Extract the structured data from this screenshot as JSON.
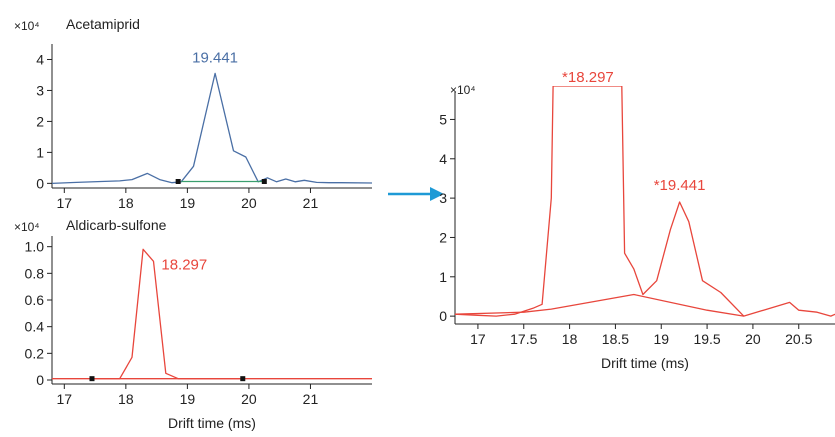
{
  "colors": {
    "blue": "#4a6fa5",
    "red": "#e8463c",
    "green": "#3a9e6e",
    "axis": "#222222",
    "arrow": "#1e9ad6"
  },
  "arrow_icon": "right-arrow-icon",
  "chart_data": [
    {
      "type": "line",
      "label": "Acetamiprid",
      "exponent_label": "×10⁴",
      "xlabel": "",
      "xlim": [
        16.8,
        22.0
      ],
      "ylim": [
        -0.15,
        4.5
      ],
      "x_ticks": [
        17,
        18,
        19,
        20,
        21
      ],
      "y_ticks": [
        0,
        1,
        2,
        3,
        4
      ],
      "series": [
        {
          "color": "blue",
          "x": [
            16.8,
            17.2,
            17.6,
            17.9,
            18.1,
            18.35,
            18.55,
            18.75,
            18.9,
            19.1,
            19.45,
            19.75,
            19.95,
            20.15,
            20.3,
            20.45,
            20.6,
            20.75,
            20.9,
            21.1,
            21.3,
            21.5,
            22.0
          ],
          "y": [
            0,
            0.03,
            0.06,
            0.08,
            0.12,
            0.32,
            0.12,
            0.02,
            0.05,
            0.55,
            3.55,
            1.05,
            0.85,
            0.05,
            0.18,
            0.05,
            0.14,
            0.05,
            0.1,
            0.03,
            0.02,
            0.02,
            0.01
          ]
        },
        {
          "color": "green",
          "x": [
            18.9,
            20.25
          ],
          "y": [
            0.06,
            0.06
          ]
        }
      ],
      "markers": [
        {
          "x": 18.85,
          "y": 0.06
        },
        {
          "x": 20.25,
          "y": 0.06
        }
      ],
      "annotations": [
        {
          "text": "19.441",
          "x": 19.45,
          "y": 3.9,
          "color": "blue"
        }
      ]
    },
    {
      "type": "line",
      "label": "Aldicarb-sulfone",
      "exponent_label": "×10⁴",
      "xlabel": "Drift time (ms)",
      "xlim": [
        16.8,
        22.0
      ],
      "ylim": [
        -0.03,
        1.08
      ],
      "x_ticks": [
        17,
        18,
        19,
        20,
        21
      ],
      "y_ticks": [
        0,
        0.2,
        0.4,
        0.6,
        0.8,
        1.0
      ],
      "y_tick_labels": [
        "0",
        "0.2",
        "0.4",
        "0.6",
        "0.8",
        "1.0"
      ],
      "series": [
        {
          "color": "red",
          "x": [
            16.8,
            17.5,
            17.9,
            18.1,
            18.28,
            18.45,
            18.65,
            18.85,
            19.2,
            20.0,
            21.0,
            22.0
          ],
          "y": [
            0.01,
            0.01,
            0.01,
            0.17,
            0.98,
            0.89,
            0.05,
            0.01,
            0.01,
            0.01,
            0.01,
            0.01
          ]
        },
        {
          "color": "red",
          "x": [
            17.4,
            19.9
          ],
          "y": [
            0.01,
            0.01
          ]
        }
      ],
      "markers": [
        {
          "x": 17.45,
          "y": 0.01
        },
        {
          "x": 19.9,
          "y": 0.01
        }
      ],
      "annotations": [
        {
          "text": "18.297",
          "x": 18.95,
          "y": 0.83,
          "color": "red"
        }
      ]
    },
    {
      "type": "line",
      "label": "",
      "exponent_label": "×10⁴",
      "xlabel": "Drift time (ms)",
      "xlim": [
        16.75,
        20.95
      ],
      "ylim": [
        -0.2,
        5.85
      ],
      "x_ticks": [
        17,
        17.5,
        18,
        18.5,
        19,
        19.5,
        20,
        20.5
      ],
      "y_ticks": [
        0,
        1,
        2,
        3,
        4,
        5
      ],
      "series": [
        {
          "color": "red",
          "x": [
            16.75,
            17.0,
            17.2,
            17.4,
            17.6,
            17.7,
            17.8,
            17.82,
            17.9,
            18.5,
            18.57,
            18.6,
            18.7,
            18.8,
            18.95,
            19.1,
            19.2,
            19.3,
            19.45,
            19.65,
            19.9,
            20.4,
            20.5,
            20.7,
            20.85,
            20.95
          ],
          "y": [
            0.05,
            0.02,
            0.0,
            0.05,
            0.2,
            0.3,
            3.0,
            5.85,
            5.85,
            5.85,
            5.85,
            1.6,
            1.2,
            0.55,
            0.9,
            2.2,
            2.9,
            2.4,
            0.9,
            0.6,
            0.0,
            0.35,
            0.15,
            0.1,
            0.0,
            0.1
          ]
        },
        {
          "color": "red",
          "x": [
            16.75,
            17.5,
            17.8,
            18.7,
            19.5,
            19.9
          ],
          "y": [
            0.05,
            0.1,
            0.18,
            0.55,
            0.15,
            0.0
          ]
        }
      ],
      "clip_top": true,
      "annotations": [
        {
          "text": "*18.297",
          "x": 18.2,
          "y": 5.95,
          "color": "red"
        },
        {
          "text": "*19.441",
          "x": 19.2,
          "y": 3.2,
          "color": "red"
        }
      ]
    }
  ]
}
